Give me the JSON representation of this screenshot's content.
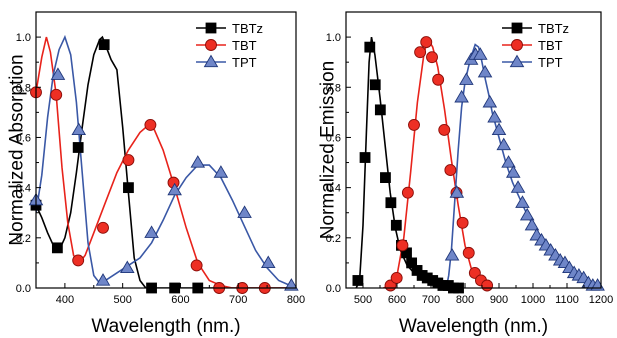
{
  "chart_data": [
    {
      "type": "line",
      "xlabel": "Wavelength (nm.)",
      "ylabel": "Normalized Absorption",
      "xlim": [
        350,
        800
      ],
      "ylim": [
        0,
        1.1
      ],
      "xticks": [
        400,
        500,
        600,
        700,
        800
      ],
      "xtick_labels": [
        "400",
        "500",
        "600",
        "700",
        "800"
      ],
      "yticks": [
        0,
        0.2,
        0.4,
        0.6,
        0.8,
        1.0
      ],
      "ytick_labels": [
        "0.0",
        "0.2",
        "0.4",
        "0.6",
        "0.8",
        "1.0"
      ],
      "grid": false,
      "legend_position": "top-right",
      "series": [
        {
          "name": "TBTz",
          "color": "#000000",
          "marker": "square",
          "line": [
            [
              350,
              0.33
            ],
            [
              360,
              0.28
            ],
            [
              370,
              0.22
            ],
            [
              380,
              0.17
            ],
            [
              390,
              0.15
            ],
            [
              400,
              0.2
            ],
            [
              410,
              0.3
            ],
            [
              420,
              0.46
            ],
            [
              430,
              0.64
            ],
            [
              440,
              0.81
            ],
            [
              450,
              0.93
            ],
            [
              460,
              0.99
            ],
            [
              465,
              1.0
            ],
            [
              470,
              0.97
            ],
            [
              480,
              0.91
            ],
            [
              485,
              0.89
            ],
            [
              490,
              0.87
            ],
            [
              500,
              0.64
            ],
            [
              510,
              0.38
            ],
            [
              520,
              0.12
            ],
            [
              530,
              0.03
            ],
            [
              540,
              0.0
            ],
            [
              560,
              0.0
            ],
            [
              600,
              0.0
            ],
            [
              800,
              0.0
            ]
          ],
          "markers": [
            [
              350,
              0.33
            ],
            [
              387,
              0.16
            ],
            [
              423,
              0.56
            ],
            [
              468,
              0.97
            ],
            [
              510,
              0.4
            ],
            [
              550,
              0.0
            ],
            [
              590,
              0.0
            ],
            [
              630,
              0.0
            ]
          ]
        },
        {
          "name": "TBT",
          "color": "#e8231b",
          "marker": "circle",
          "line": [
            [
              350,
              0.78
            ],
            [
              360,
              0.92
            ],
            [
              368,
              1.0
            ],
            [
              375,
              0.94
            ],
            [
              385,
              0.77
            ],
            [
              395,
              0.48
            ],
            [
              405,
              0.26
            ],
            [
              415,
              0.13
            ],
            [
              425,
              0.1
            ],
            [
              435,
              0.13
            ],
            [
              450,
              0.22
            ],
            [
              470,
              0.34
            ],
            [
              490,
              0.46
            ],
            [
              510,
              0.55
            ],
            [
              530,
              0.62
            ],
            [
              545,
              0.65
            ],
            [
              555,
              0.63
            ],
            [
              570,
              0.55
            ],
            [
              590,
              0.4
            ],
            [
              610,
              0.24
            ],
            [
              630,
              0.1
            ],
            [
              650,
              0.03
            ],
            [
              670,
              0.01
            ],
            [
              690,
              0.0
            ],
            [
              800,
              0.0
            ]
          ],
          "markers": [
            [
              350,
              0.78
            ],
            [
              385,
              0.77
            ],
            [
              423,
              0.11
            ],
            [
              466,
              0.24
            ],
            [
              510,
              0.51
            ],
            [
              548,
              0.65
            ],
            [
              588,
              0.42
            ],
            [
              628,
              0.09
            ],
            [
              667,
              0.0
            ],
            [
              707,
              0.0
            ],
            [
              746,
              0.0
            ]
          ]
        },
        {
          "name": "TPT",
          "color": "#3a58a6",
          "marker": "triangle",
          "line": [
            [
              350,
              0.3
            ],
            [
              360,
              0.45
            ],
            [
              370,
              0.68
            ],
            [
              380,
              0.85
            ],
            [
              390,
              0.95
            ],
            [
              400,
              1.0
            ],
            [
              410,
              0.93
            ],
            [
              420,
              0.74
            ],
            [
              430,
              0.46
            ],
            [
              440,
              0.18
            ],
            [
              450,
              0.05
            ],
            [
              460,
              0.02
            ],
            [
              470,
              0.03
            ],
            [
              490,
              0.06
            ],
            [
              510,
              0.09
            ],
            [
              530,
              0.12
            ],
            [
              550,
              0.18
            ],
            [
              570,
              0.27
            ],
            [
              590,
              0.37
            ],
            [
              610,
              0.44
            ],
            [
              630,
              0.49
            ],
            [
              650,
              0.49
            ],
            [
              670,
              0.44
            ],
            [
              690,
              0.35
            ],
            [
              710,
              0.25
            ],
            [
              730,
              0.15
            ],
            [
              750,
              0.08
            ],
            [
              770,
              0.03
            ],
            [
              790,
              0.01
            ],
            [
              800,
              0.0
            ]
          ],
          "markers": [
            [
              350,
              0.35
            ],
            [
              388,
              0.85
            ],
            [
              424,
              0.63
            ],
            [
              466,
              0.03
            ],
            [
              508,
              0.08
            ],
            [
              550,
              0.22
            ],
            [
              590,
              0.39
            ],
            [
              630,
              0.5
            ],
            [
              670,
              0.46
            ],
            [
              711,
              0.3
            ],
            [
              752,
              0.1
            ],
            [
              792,
              0.01
            ]
          ]
        }
      ]
    },
    {
      "type": "line",
      "xlabel": "Wavelength (nm.)",
      "ylabel": "Normalized Emission",
      "xlim": [
        450,
        1200
      ],
      "ylim": [
        0,
        1.1
      ],
      "xticks": [
        500,
        600,
        700,
        800,
        900,
        1000,
        1100,
        1200
      ],
      "xtick_labels": [
        "500",
        "600",
        "700",
        "800",
        "900",
        "1000",
        "1100",
        "1200"
      ],
      "yticks": [
        0,
        0.2,
        0.4,
        0.6,
        0.8,
        1.0
      ],
      "ytick_labels": [
        "0.0",
        "0.2",
        "0.4",
        "0.6",
        "0.8",
        "1.0"
      ],
      "grid": false,
      "legend_position": "top-right",
      "series": [
        {
          "name": "TBTz",
          "color": "#000000",
          "marker": "square",
          "line": [
            [
              480,
              0.0
            ],
            [
              490,
              0.03
            ],
            [
              500,
              0.25
            ],
            [
              510,
              0.62
            ],
            [
              518,
              0.9
            ],
            [
              525,
              1.0
            ],
            [
              535,
              0.93
            ],
            [
              550,
              0.76
            ],
            [
              565,
              0.57
            ],
            [
              580,
              0.38
            ],
            [
              595,
              0.24
            ],
            [
              610,
              0.15
            ],
            [
              630,
              0.09
            ],
            [
              650,
              0.06
            ],
            [
              680,
              0.04
            ],
            [
              720,
              0.02
            ],
            [
              760,
              0.01
            ],
            [
              790,
              0.0
            ]
          ],
          "markers": [
            [
              485,
              0.03
            ],
            [
              506,
              0.52
            ],
            [
              520,
              0.96
            ],
            [
              536,
              0.81
            ],
            [
              551,
              0.71
            ],
            [
              566,
              0.44
            ],
            [
              582,
              0.34
            ],
            [
              598,
              0.25
            ],
            [
              613,
              0.17
            ],
            [
              628,
              0.14
            ],
            [
              643,
              0.1
            ],
            [
              659,
              0.07
            ],
            [
              674,
              0.05
            ],
            [
              689,
              0.04
            ],
            [
              705,
              0.03
            ],
            [
              720,
              0.02
            ],
            [
              735,
              0.01
            ],
            [
              751,
              0.01
            ],
            [
              766,
              0.0
            ],
            [
              781,
              0.0
            ]
          ]
        },
        {
          "name": "TBT",
          "color": "#e8231b",
          "marker": "circle",
          "line": [
            [
              560,
              0.0
            ],
            [
              580,
              0.01
            ],
            [
              600,
              0.05
            ],
            [
              620,
              0.2
            ],
            [
              640,
              0.46
            ],
            [
              660,
              0.74
            ],
            [
              680,
              0.94
            ],
            [
              692,
              0.99
            ],
            [
              705,
              0.96
            ],
            [
              720,
              0.88
            ],
            [
              740,
              0.71
            ],
            [
              760,
              0.51
            ],
            [
              780,
              0.33
            ],
            [
              800,
              0.17
            ],
            [
              820,
              0.07
            ],
            [
              840,
              0.02
            ],
            [
              870,
              0.0
            ]
          ],
          "markers": [
            [
              581,
              0.01
            ],
            [
              599,
              0.04
            ],
            [
              616,
              0.17
            ],
            [
              632,
              0.38
            ],
            [
              650,
              0.65
            ],
            [
              668,
              0.94
            ],
            [
              686,
              0.98
            ],
            [
              703,
              0.92
            ],
            [
              721,
              0.83
            ],
            [
              739,
              0.63
            ],
            [
              757,
              0.47
            ],
            [
              775,
              0.38
            ],
            [
              793,
              0.26
            ],
            [
              811,
              0.14
            ],
            [
              829,
              0.06
            ],
            [
              847,
              0.03
            ],
            [
              865,
              0.01
            ]
          ]
        },
        {
          "name": "TPT",
          "color": "#3a58a6",
          "marker": "triangle",
          "line": [
            [
              745,
              0.0
            ],
            [
              752,
              0.05
            ],
            [
              760,
              0.15
            ],
            [
              770,
              0.35
            ],
            [
              780,
              0.55
            ],
            [
              790,
              0.72
            ],
            [
              800,
              0.82
            ],
            [
              810,
              0.88
            ],
            [
              820,
              0.93
            ],
            [
              830,
              0.97
            ],
            [
              840,
              0.96
            ],
            [
              850,
              0.9
            ],
            [
              860,
              0.83
            ],
            [
              870,
              0.77
            ],
            [
              880,
              0.7
            ],
            [
              900,
              0.6
            ],
            [
              920,
              0.5
            ],
            [
              940,
              0.42
            ],
            [
              960,
              0.36
            ],
            [
              980,
              0.3
            ],
            [
              1000,
              0.25
            ],
            [
              1020,
              0.2
            ],
            [
              1040,
              0.16
            ],
            [
              1060,
              0.13
            ],
            [
              1080,
              0.11
            ],
            [
              1100,
              0.09
            ],
            [
              1120,
              0.07
            ],
            [
              1140,
              0.05
            ],
            [
              1160,
              0.03
            ],
            [
              1180,
              0.02
            ],
            [
              1200,
              0.01
            ]
          ],
          "markers": [
            [
              762,
              0.13
            ],
            [
              776,
              0.38
            ],
            [
              790,
              0.76
            ],
            [
              804,
              0.83
            ],
            [
              818,
              0.91
            ],
            [
              831,
              0.93
            ],
            [
              845,
              0.93
            ],
            [
              859,
              0.86
            ],
            [
              873,
              0.74
            ],
            [
              887,
              0.68
            ],
            [
              900,
              0.63
            ],
            [
              914,
              0.57
            ],
            [
              928,
              0.5
            ],
            [
              942,
              0.46
            ],
            [
              956,
              0.4
            ],
            [
              969,
              0.34
            ],
            [
              983,
              0.29
            ],
            [
              997,
              0.25
            ],
            [
              1011,
              0.21
            ],
            [
              1025,
              0.19
            ],
            [
              1038,
              0.17
            ],
            [
              1052,
              0.15
            ],
            [
              1066,
              0.13
            ],
            [
              1080,
              0.11
            ],
            [
              1094,
              0.1
            ],
            [
              1107,
              0.08
            ],
            [
              1121,
              0.06
            ],
            [
              1135,
              0.05
            ],
            [
              1149,
              0.04
            ],
            [
              1163,
              0.02
            ],
            [
              1176,
              0.01
            ],
            [
              1190,
              0.01
            ]
          ]
        }
      ]
    }
  ]
}
